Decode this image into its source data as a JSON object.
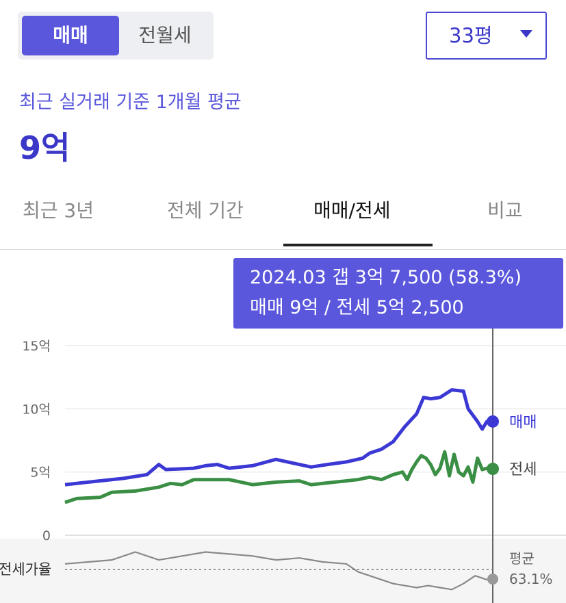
{
  "controls": {
    "deal_types": [
      "매매",
      "전월세"
    ],
    "active_deal_type": "매매",
    "area_select": "33평"
  },
  "summary": {
    "subtitle": "최근 실거래 기준 1개월 평균",
    "price": "9억"
  },
  "tabs": [
    {
      "label": "최근 3년",
      "active": false
    },
    {
      "label": "전체 기간",
      "active": false
    },
    {
      "label": "매매/전세",
      "active": true
    },
    {
      "label": "비교",
      "active": false
    }
  ],
  "tooltip": {
    "line1": "2024.03  갭 3억 7,500 (58.3%)",
    "line2": "매매 9억 / 전세 5억 2,500"
  },
  "colors": {
    "sale": "#3b38d4",
    "jeonse": "#3a8f45",
    "ratio": "#888888",
    "accent": "#5a57dc"
  },
  "chart_data": {
    "type": "line",
    "y_ticks": [
      "15억",
      "10억",
      "5억",
      "0"
    ],
    "ylim": [
      0,
      15
    ],
    "x_range": [
      2006.0,
      2024.25
    ],
    "grid": true,
    "series": [
      {
        "name": "매매",
        "end_label": "매매",
        "points": [
          [
            2006.0,
            4.0
          ],
          [
            2007.0,
            4.2
          ],
          [
            2008.5,
            4.5
          ],
          [
            2009.5,
            4.8
          ],
          [
            2010.0,
            5.6
          ],
          [
            2010.3,
            5.2
          ],
          [
            2011.5,
            5.3
          ],
          [
            2012.0,
            5.5
          ],
          [
            2012.5,
            5.6
          ],
          [
            2013.0,
            5.3
          ],
          [
            2014.0,
            5.5
          ],
          [
            2015.0,
            6.0
          ],
          [
            2015.5,
            5.8
          ],
          [
            2016.5,
            5.4
          ],
          [
            2017.2,
            5.6
          ],
          [
            2018.0,
            5.8
          ],
          [
            2018.7,
            6.1
          ],
          [
            2019.0,
            6.5
          ],
          [
            2019.5,
            6.8
          ],
          [
            2020.0,
            7.4
          ],
          [
            2020.5,
            8.6
          ],
          [
            2021.0,
            9.6
          ],
          [
            2021.3,
            10.9
          ],
          [
            2021.6,
            10.8
          ],
          [
            2022.0,
            10.9
          ],
          [
            2022.5,
            11.5
          ],
          [
            2023.0,
            11.4
          ],
          [
            2023.2,
            10.0
          ],
          [
            2023.6,
            9.0
          ],
          [
            2023.8,
            8.4
          ],
          [
            2024.0,
            9.0
          ],
          [
            2024.25,
            9.0
          ]
        ]
      },
      {
        "name": "전세",
        "end_label": "전세",
        "points": [
          [
            2006.0,
            2.6
          ],
          [
            2006.5,
            2.9
          ],
          [
            2007.5,
            3.0
          ],
          [
            2008.0,
            3.4
          ],
          [
            2009.0,
            3.5
          ],
          [
            2010.0,
            3.8
          ],
          [
            2010.5,
            4.1
          ],
          [
            2011.0,
            4.0
          ],
          [
            2011.5,
            4.4
          ],
          [
            2012.0,
            4.4
          ],
          [
            2013.0,
            4.4
          ],
          [
            2014.0,
            4.0
          ],
          [
            2015.0,
            4.2
          ],
          [
            2016.0,
            4.3
          ],
          [
            2016.5,
            4.0
          ],
          [
            2017.5,
            4.2
          ],
          [
            2018.0,
            4.3
          ],
          [
            2018.5,
            4.4
          ],
          [
            2019.0,
            4.6
          ],
          [
            2019.5,
            4.4
          ],
          [
            2020.0,
            4.8
          ],
          [
            2020.4,
            5.0
          ],
          [
            2020.6,
            4.4
          ],
          [
            2020.8,
            5.2
          ],
          [
            2021.0,
            5.8
          ],
          [
            2021.2,
            6.3
          ],
          [
            2021.4,
            6.1
          ],
          [
            2021.6,
            5.6
          ],
          [
            2021.8,
            4.8
          ],
          [
            2022.0,
            5.3
          ],
          [
            2022.2,
            6.6
          ],
          [
            2022.4,
            4.7
          ],
          [
            2022.6,
            6.4
          ],
          [
            2022.8,
            5.0
          ],
          [
            2023.0,
            4.7
          ],
          [
            2023.2,
            5.4
          ],
          [
            2023.4,
            4.2
          ],
          [
            2023.6,
            6.1
          ],
          [
            2023.8,
            5.2
          ],
          [
            2024.0,
            5.3
          ],
          [
            2024.25,
            5.25
          ]
        ]
      },
      {
        "name": "전세가율",
        "points": [
          [
            2006.0,
            66
          ],
          [
            2007.0,
            67
          ],
          [
            2008.0,
            68
          ],
          [
            2009.0,
            72
          ],
          [
            2010.0,
            68
          ],
          [
            2011.0,
            70
          ],
          [
            2012.0,
            72
          ],
          [
            2013.0,
            71
          ],
          [
            2014.0,
            70
          ],
          [
            2015.0,
            68
          ],
          [
            2016.0,
            69
          ],
          [
            2017.0,
            67
          ],
          [
            2018.0,
            66
          ],
          [
            2018.5,
            62
          ],
          [
            2019.0,
            60
          ],
          [
            2019.5,
            58
          ],
          [
            2020.0,
            56
          ],
          [
            2020.5,
            55
          ],
          [
            2021.0,
            54
          ],
          [
            2021.5,
            55
          ],
          [
            2022.0,
            54
          ],
          [
            2022.5,
            53
          ],
          [
            2023.0,
            56
          ],
          [
            2023.5,
            60
          ],
          [
            2024.0,
            58
          ],
          [
            2024.25,
            58.3
          ]
        ]
      }
    ],
    "ratio_panel": {
      "label": "전세가율",
      "average_label": "평균",
      "average_value": "63.1%",
      "average": 63.1
    },
    "highlight": {
      "x": 2024.25,
      "tooltip_ref": "tooltip"
    }
  }
}
